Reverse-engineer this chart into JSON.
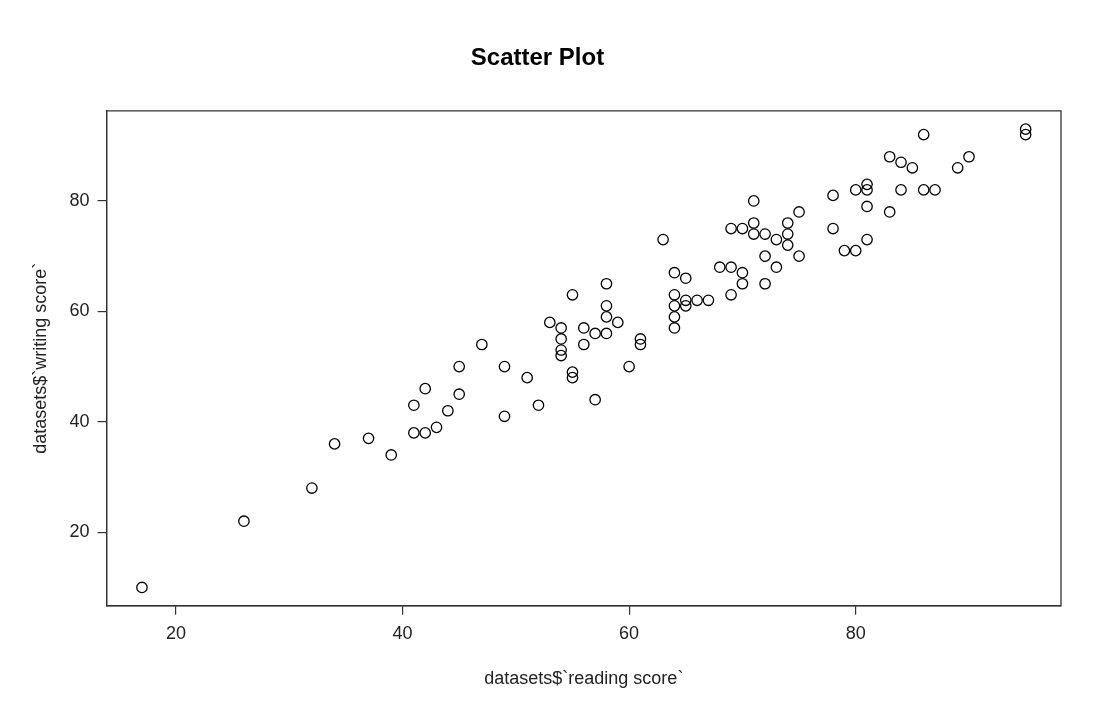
{
  "chart_data": {
    "type": "scatter",
    "title": "Scatter Plot",
    "xlabel": "datasets$`reading score`",
    "ylabel": "datasets$`writing score`",
    "color": "#000000",
    "marker": "circle",
    "grid": false,
    "x": [
      17,
      26,
      32,
      34,
      37,
      39,
      41,
      41,
      42,
      42,
      43,
      44,
      45,
      45,
      47,
      49,
      49,
      51,
      52,
      53,
      54,
      54,
      54,
      54,
      55,
      55,
      55,
      56,
      56,
      57,
      57,
      58,
      58,
      58,
      58,
      59,
      60,
      61,
      61,
      63,
      64,
      64,
      64,
      64,
      64,
      65,
      65,
      65,
      66,
      67,
      68,
      69,
      69,
      69,
      70,
      70,
      70,
      71,
      71,
      71,
      72,
      72,
      72,
      73,
      73,
      74,
      74,
      74,
      75,
      75,
      78,
      78,
      79,
      80,
      80,
      81,
      81,
      81,
      81,
      83,
      83,
      84,
      84,
      85,
      86,
      86,
      87,
      89,
      90,
      95,
      95
    ],
    "values": [
      10,
      22,
      28,
      36,
      37,
      34,
      43,
      38,
      38,
      46,
      39,
      42,
      50,
      45,
      54,
      50,
      41,
      48,
      43,
      58,
      57,
      55,
      53,
      52,
      63,
      49,
      48,
      57,
      54,
      56,
      44,
      65,
      61,
      59,
      56,
      58,
      50,
      55,
      54,
      73,
      67,
      63,
      61,
      59,
      57,
      66,
      62,
      61,
      62,
      62,
      68,
      75,
      68,
      63,
      75,
      67,
      65,
      80,
      76,
      74,
      74,
      70,
      65,
      73,
      68,
      76,
      74,
      72,
      78,
      70,
      81,
      75,
      71,
      71,
      82,
      83,
      82,
      79,
      73,
      88,
      78,
      87,
      82,
      86,
      92,
      82,
      82,
      86,
      88,
      93,
      92
    ],
    "xlim": [
      13.88,
      98.12
    ],
    "ylim": [
      6.68,
      96.32
    ],
    "xticks": [
      20,
      40,
      60,
      80
    ],
    "yticks": [
      20,
      40,
      60,
      80
    ]
  }
}
